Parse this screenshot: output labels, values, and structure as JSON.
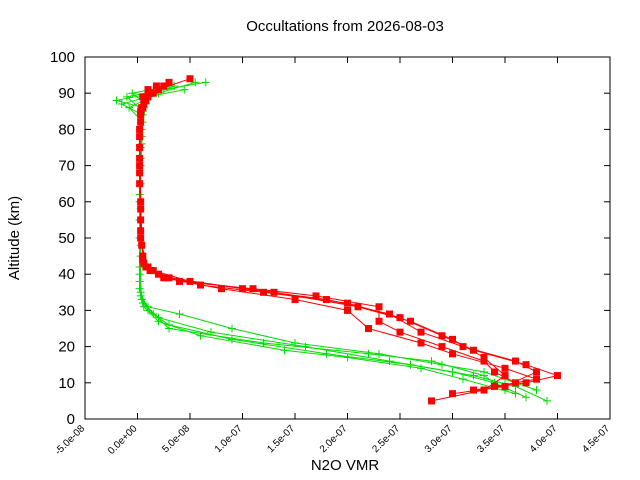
{
  "chart_data": {
    "type": "line",
    "title": "Occultations from 2026-08-03",
    "xlabel": "N2O VMR",
    "ylabel": "Altitude (km)",
    "xlim": [
      -5e-08,
      4.5e-07
    ],
    "ylim": [
      0,
      100
    ],
    "x_ticks": [
      "-5.0e-08",
      "0.0e+00",
      "5.0e-08",
      "1.0e-07",
      "1.5e-07",
      "2.0e-07",
      "2.5e-07",
      "3.0e-07",
      "3.5e-07",
      "4.0e-07",
      "4.5e-07"
    ],
    "y_ticks": [
      "0",
      "10",
      "20",
      "30",
      "40",
      "50",
      "60",
      "70",
      "80",
      "90",
      "100"
    ],
    "grid": false,
    "legend": "none",
    "series": [
      {
        "marker": "plus",
        "color": "#00dd00",
        "profiles": [
          [
            [
              3.7e-07,
              6
            ],
            [
              3.4e-07,
              10
            ],
            [
              3e-07,
              13
            ],
            [
              2.4e-07,
              16
            ],
            [
              1.6e-07,
              20
            ],
            [
              7e-08,
              24
            ],
            [
              2e-08,
              28
            ],
            [
              5e-09,
              32
            ],
            [
              2e-09,
              38
            ],
            [
              2e-09,
              50
            ],
            [
              3e-09,
              65
            ],
            [
              4e-09,
              78
            ],
            [
              6e-09,
              86
            ],
            [
              -2e-08,
              88
            ],
            [
              1.5e-08,
              90
            ],
            [
              3.5e-08,
              92
            ]
          ],
          [
            [
              3.9e-07,
              5
            ],
            [
              3.6e-07,
              9
            ],
            [
              3.2e-07,
              12
            ],
            [
              2.6e-07,
              15
            ],
            [
              1.8e-07,
              18
            ],
            [
              9e-08,
              22
            ],
            [
              3e-08,
              26
            ],
            [
              1e-08,
              30
            ],
            [
              3e-09,
              35
            ],
            [
              3e-09,
              45
            ],
            [
              2e-09,
              60
            ],
            [
              3e-09,
              75
            ],
            [
              5e-09,
              85
            ],
            [
              -1e-08,
              89
            ],
            [
              2.5e-08,
              91
            ],
            [
              6.5e-08,
              93
            ]
          ],
          [
            [
              3.5e-07,
              8
            ],
            [
              3.3e-07,
              12
            ],
            [
              2.8e-07,
              16
            ],
            [
              2.2e-07,
              18
            ],
            [
              1.2e-07,
              21
            ],
            [
              3e-08,
              25
            ],
            [
              1.5e-08,
              29
            ],
            [
              4e-09,
              33
            ],
            [
              2e-09,
              42
            ],
            [
              2e-09,
              55
            ],
            [
              3e-09,
              70
            ],
            [
              4e-09,
              80
            ],
            [
              8e-09,
              87
            ],
            [
              -5e-09,
              90
            ],
            [
              3e-08,
              92
            ]
          ],
          [
            [
              3.6e-07,
              7
            ],
            [
              3.1e-07,
              11
            ],
            [
              2.7e-07,
              14
            ],
            [
              2e-07,
              17
            ],
            [
              1.4e-07,
              19
            ],
            [
              6e-08,
              23
            ],
            [
              2e-08,
              27
            ],
            [
              6e-09,
              31
            ],
            [
              2e-09,
              36
            ],
            [
              3e-09,
              48
            ],
            [
              2e-09,
              62
            ],
            [
              4e-09,
              76
            ],
            [
              5e-09,
              84
            ],
            [
              -1.5e-08,
              87
            ],
            [
              1e-08,
              89
            ],
            [
              4.5e-08,
              91
            ]
          ],
          [
            [
              3.8e-07,
              8
            ],
            [
              3.5e-07,
              11
            ],
            [
              3.3e-07,
              13
            ],
            [
              2.9e-07,
              15
            ],
            [
              2.3e-07,
              18
            ],
            [
              1.5e-07,
              21
            ],
            [
              9e-08,
              25
            ],
            [
              4e-08,
              29
            ],
            [
              1e-08,
              31
            ],
            [
              3e-09,
              34
            ],
            [
              2e-09,
              40
            ],
            [
              3e-09,
              58
            ],
            [
              3e-09,
              72
            ],
            [
              5e-09,
              82
            ],
            [
              -8e-09,
              86
            ],
            [
              2e-08,
              90
            ],
            [
              5.5e-08,
              93
            ]
          ]
        ]
      },
      {
        "marker": "square",
        "color": "#ff0000",
        "profiles": [
          [
            [
              2.8e-07,
              5
            ],
            [
              3.3e-07,
              8
            ],
            [
              3.5e-07,
              12
            ],
            [
              3.3e-07,
              17
            ],
            [
              3e-07,
              22
            ],
            [
              2.6e-07,
              27
            ],
            [
              2.1e-07,
              31
            ],
            [
              1.3e-07,
              35
            ],
            [
              5e-08,
              38
            ],
            [
              1.5e-08,
              41
            ],
            [
              5e-09,
              44
            ],
            [
              3e-09,
              55
            ],
            [
              2e-09,
              70
            ],
            [
              2e-09,
              80
            ],
            [
              4e-09,
              86
            ],
            [
              1e-08,
              89
            ],
            [
              3e-08,
              93
            ]
          ],
          [
            [
              3e-07,
              7
            ],
            [
              3.5e-07,
              9
            ],
            [
              3.8e-07,
              13
            ],
            [
              3.6e-07,
              16
            ],
            [
              3.1e-07,
              20
            ],
            [
              2.7e-07,
              24
            ],
            [
              2.4e-07,
              29
            ],
            [
              1.8e-07,
              33
            ],
            [
              1e-07,
              36
            ],
            [
              3e-08,
              39
            ],
            [
              1e-08,
              42
            ],
            [
              4e-09,
              48
            ],
            [
              3e-09,
              60
            ],
            [
              2e-09,
              75
            ],
            [
              3e-09,
              84
            ],
            [
              8e-09,
              88
            ],
            [
              2e-08,
              91
            ],
            [
              5e-08,
              94
            ]
          ],
          [
            [
              3.2e-07,
              8
            ],
            [
              3.7e-07,
              10
            ],
            [
              4e-07,
              12
            ],
            [
              3.7e-07,
              15
            ],
            [
              3.2e-07,
              19
            ],
            [
              2.9e-07,
              23
            ],
            [
              2.5e-07,
              28
            ],
            [
              2e-07,
              32
            ],
            [
              1.2e-07,
              35
            ],
            [
              6e-08,
              37
            ],
            [
              2e-08,
              40
            ],
            [
              6e-09,
              43
            ],
            [
              3e-09,
              52
            ],
            [
              2e-09,
              65
            ],
            [
              2e-09,
              78
            ],
            [
              5e-09,
              86
            ],
            [
              1.5e-08,
              90
            ],
            [
              2.5e-08,
              92
            ]
          ],
          [
            [
              3.4e-07,
              9
            ],
            [
              3.8e-07,
              11
            ],
            [
              3.5e-07,
              14
            ],
            [
              3e-07,
              18
            ],
            [
              2.7e-07,
              21
            ],
            [
              2.2e-07,
              25
            ],
            [
              2e-07,
              30
            ],
            [
              1.5e-07,
              33
            ],
            [
              8e-08,
              36
            ],
            [
              2.5e-08,
              39
            ],
            [
              8e-09,
              42
            ],
            [
              3e-09,
              50
            ],
            [
              2e-09,
              68
            ],
            [
              3e-09,
              82
            ],
            [
              6e-09,
              87
            ],
            [
              1.2e-08,
              90
            ],
            [
              1.8e-08,
              92
            ]
          ],
          [
            [
              3.6e-07,
              10
            ],
            [
              3.4e-07,
              13
            ],
            [
              3.3e-07,
              16
            ],
            [
              2.9e-07,
              20
            ],
            [
              2.5e-07,
              24
            ],
            [
              2.3e-07,
              27
            ],
            [
              2.3e-07,
              31
            ],
            [
              1.7e-07,
              34
            ],
            [
              1.1e-07,
              36
            ],
            [
              4e-08,
              38
            ],
            [
              1.2e-08,
              41
            ],
            [
              5e-09,
              45
            ],
            [
              3e-09,
              58
            ],
            [
              2e-09,
              72
            ],
            [
              3e-09,
              85
            ],
            [
              5e-09,
              89
            ],
            [
              1e-08,
              91
            ]
          ]
        ]
      }
    ]
  }
}
